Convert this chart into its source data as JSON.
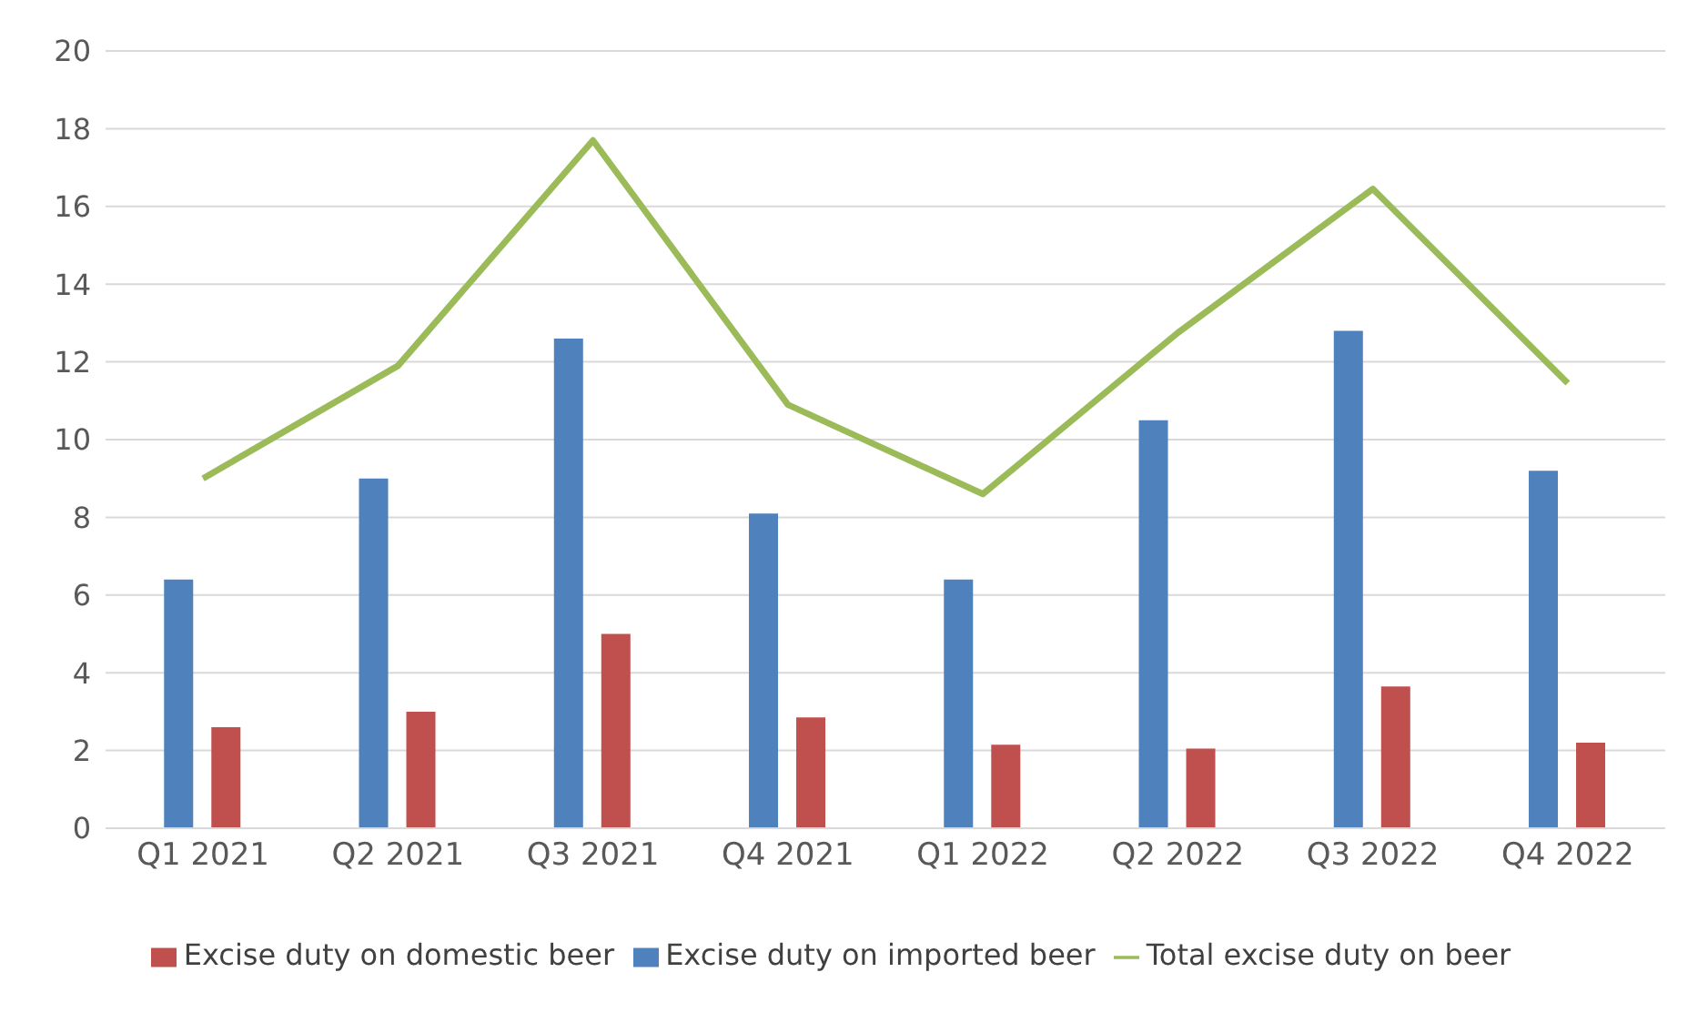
{
  "chart_data": {
    "type": "bar",
    "categories": [
      "Q1 2021",
      "Q2 2021",
      "Q3 2021",
      "Q4 2021",
      "Q1 2022",
      "Q2 2022",
      "Q3 2022",
      "Q4 2022"
    ],
    "series": [
      {
        "name": "Excise duty on imported beer",
        "color": "#4f81bd",
        "values": [
          6.4,
          9.0,
          12.6,
          8.1,
          6.4,
          10.5,
          12.8,
          9.2
        ]
      },
      {
        "name": "Excise duty on domestic beer",
        "color": "#c0504d",
        "values": [
          2.6,
          3.0,
          5.0,
          2.85,
          2.15,
          2.05,
          3.65,
          2.2
        ]
      },
      {
        "name": "Total excise duty on beer",
        "type": "line",
        "color": "#9bbb59",
        "values": [
          9.0,
          11.9,
          17.7,
          10.9,
          8.6,
          12.75,
          16.45,
          11.45
        ]
      }
    ],
    "ylim": [
      0,
      20
    ],
    "yticks": [
      0,
      2,
      4,
      6,
      8,
      10,
      12,
      14,
      16,
      18,
      20
    ],
    "grid": "y",
    "legend": "bottom",
    "marker": "none",
    "line_style": "solid"
  }
}
